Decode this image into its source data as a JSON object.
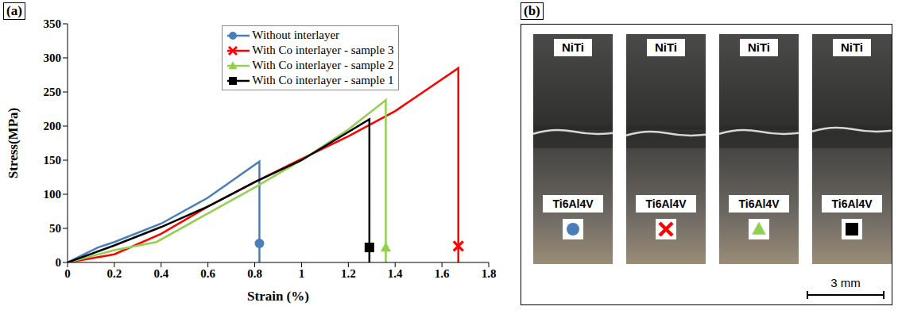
{
  "chart_data": {
    "type": "line",
    "panel_label": "(a)",
    "x_label": "Strain (%)",
    "y_label": "Stress(MPa)",
    "xlim": [
      0,
      1.8
    ],
    "xticks": [
      0,
      0.2,
      0.4,
      0.6,
      0.8,
      1,
      1.2,
      1.4,
      1.6,
      1.8
    ],
    "ylim": [
      0,
      350
    ],
    "yticks": [
      0,
      50,
      100,
      150,
      200,
      250,
      300,
      350
    ],
    "grid": false,
    "legend": "top",
    "series": [
      {
        "name": "Without interlayer",
        "color": "#4a7ebb",
        "marker": "circle",
        "x": [
          0,
          0.13,
          0.2,
          0.4,
          0.6,
          0.82,
          0.82
        ],
        "values": [
          0,
          22,
          30,
          57,
          95,
          148,
          0
        ],
        "marker_point": {
          "x": 0.82,
          "y": 28
        }
      },
      {
        "name": "With Co interlayer - sample 3",
        "color": "#ff0000",
        "marker": "x",
        "x": [
          0,
          0.2,
          0.4,
          0.6,
          0.8,
          1,
          1.2,
          1.4,
          1.67,
          1.67
        ],
        "values": [
          0,
          12,
          42,
          82,
          118,
          152,
          185,
          222,
          285,
          0
        ],
        "marker_point": {
          "x": 1.67,
          "y": 24
        }
      },
      {
        "name": "With Co interlayer - sample 2",
        "color": "#92d050",
        "marker": "triangle",
        "x": [
          0,
          0.2,
          0.38,
          0.6,
          0.8,
          1,
          1.2,
          1.36,
          1.36
        ],
        "values": [
          0,
          18,
          30,
          72,
          110,
          150,
          195,
          238,
          0
        ],
        "marker_point": {
          "x": 1.36,
          "y": 22
        }
      },
      {
        "name": "With Co interlayer - sample 1",
        "color": "#000000",
        "marker": "square",
        "x": [
          0,
          0.2,
          0.4,
          0.6,
          0.8,
          1,
          1.29,
          1.29
        ],
        "values": [
          0,
          25,
          52,
          82,
          118,
          150,
          210,
          0
        ],
        "marker_point": {
          "x": 1.29,
          "y": 22
        }
      }
    ]
  },
  "panel_b": {
    "panel_label": "(b)",
    "samples": [
      {
        "top": "NiTi",
        "bottom": "Ti6Al4V",
        "marker": "circle",
        "color": "#4a7ebb"
      },
      {
        "top": "NiTi",
        "bottom": "Ti6Al4V",
        "marker": "x",
        "color": "#ff0000"
      },
      {
        "top": "NiTi",
        "bottom": "Ti6Al4V",
        "marker": "triangle",
        "color": "#92d050"
      },
      {
        "top": "NiTi",
        "bottom": "Ti6Al4V",
        "marker": "square",
        "color": "#000000"
      }
    ],
    "scale_bar": "3 mm"
  }
}
